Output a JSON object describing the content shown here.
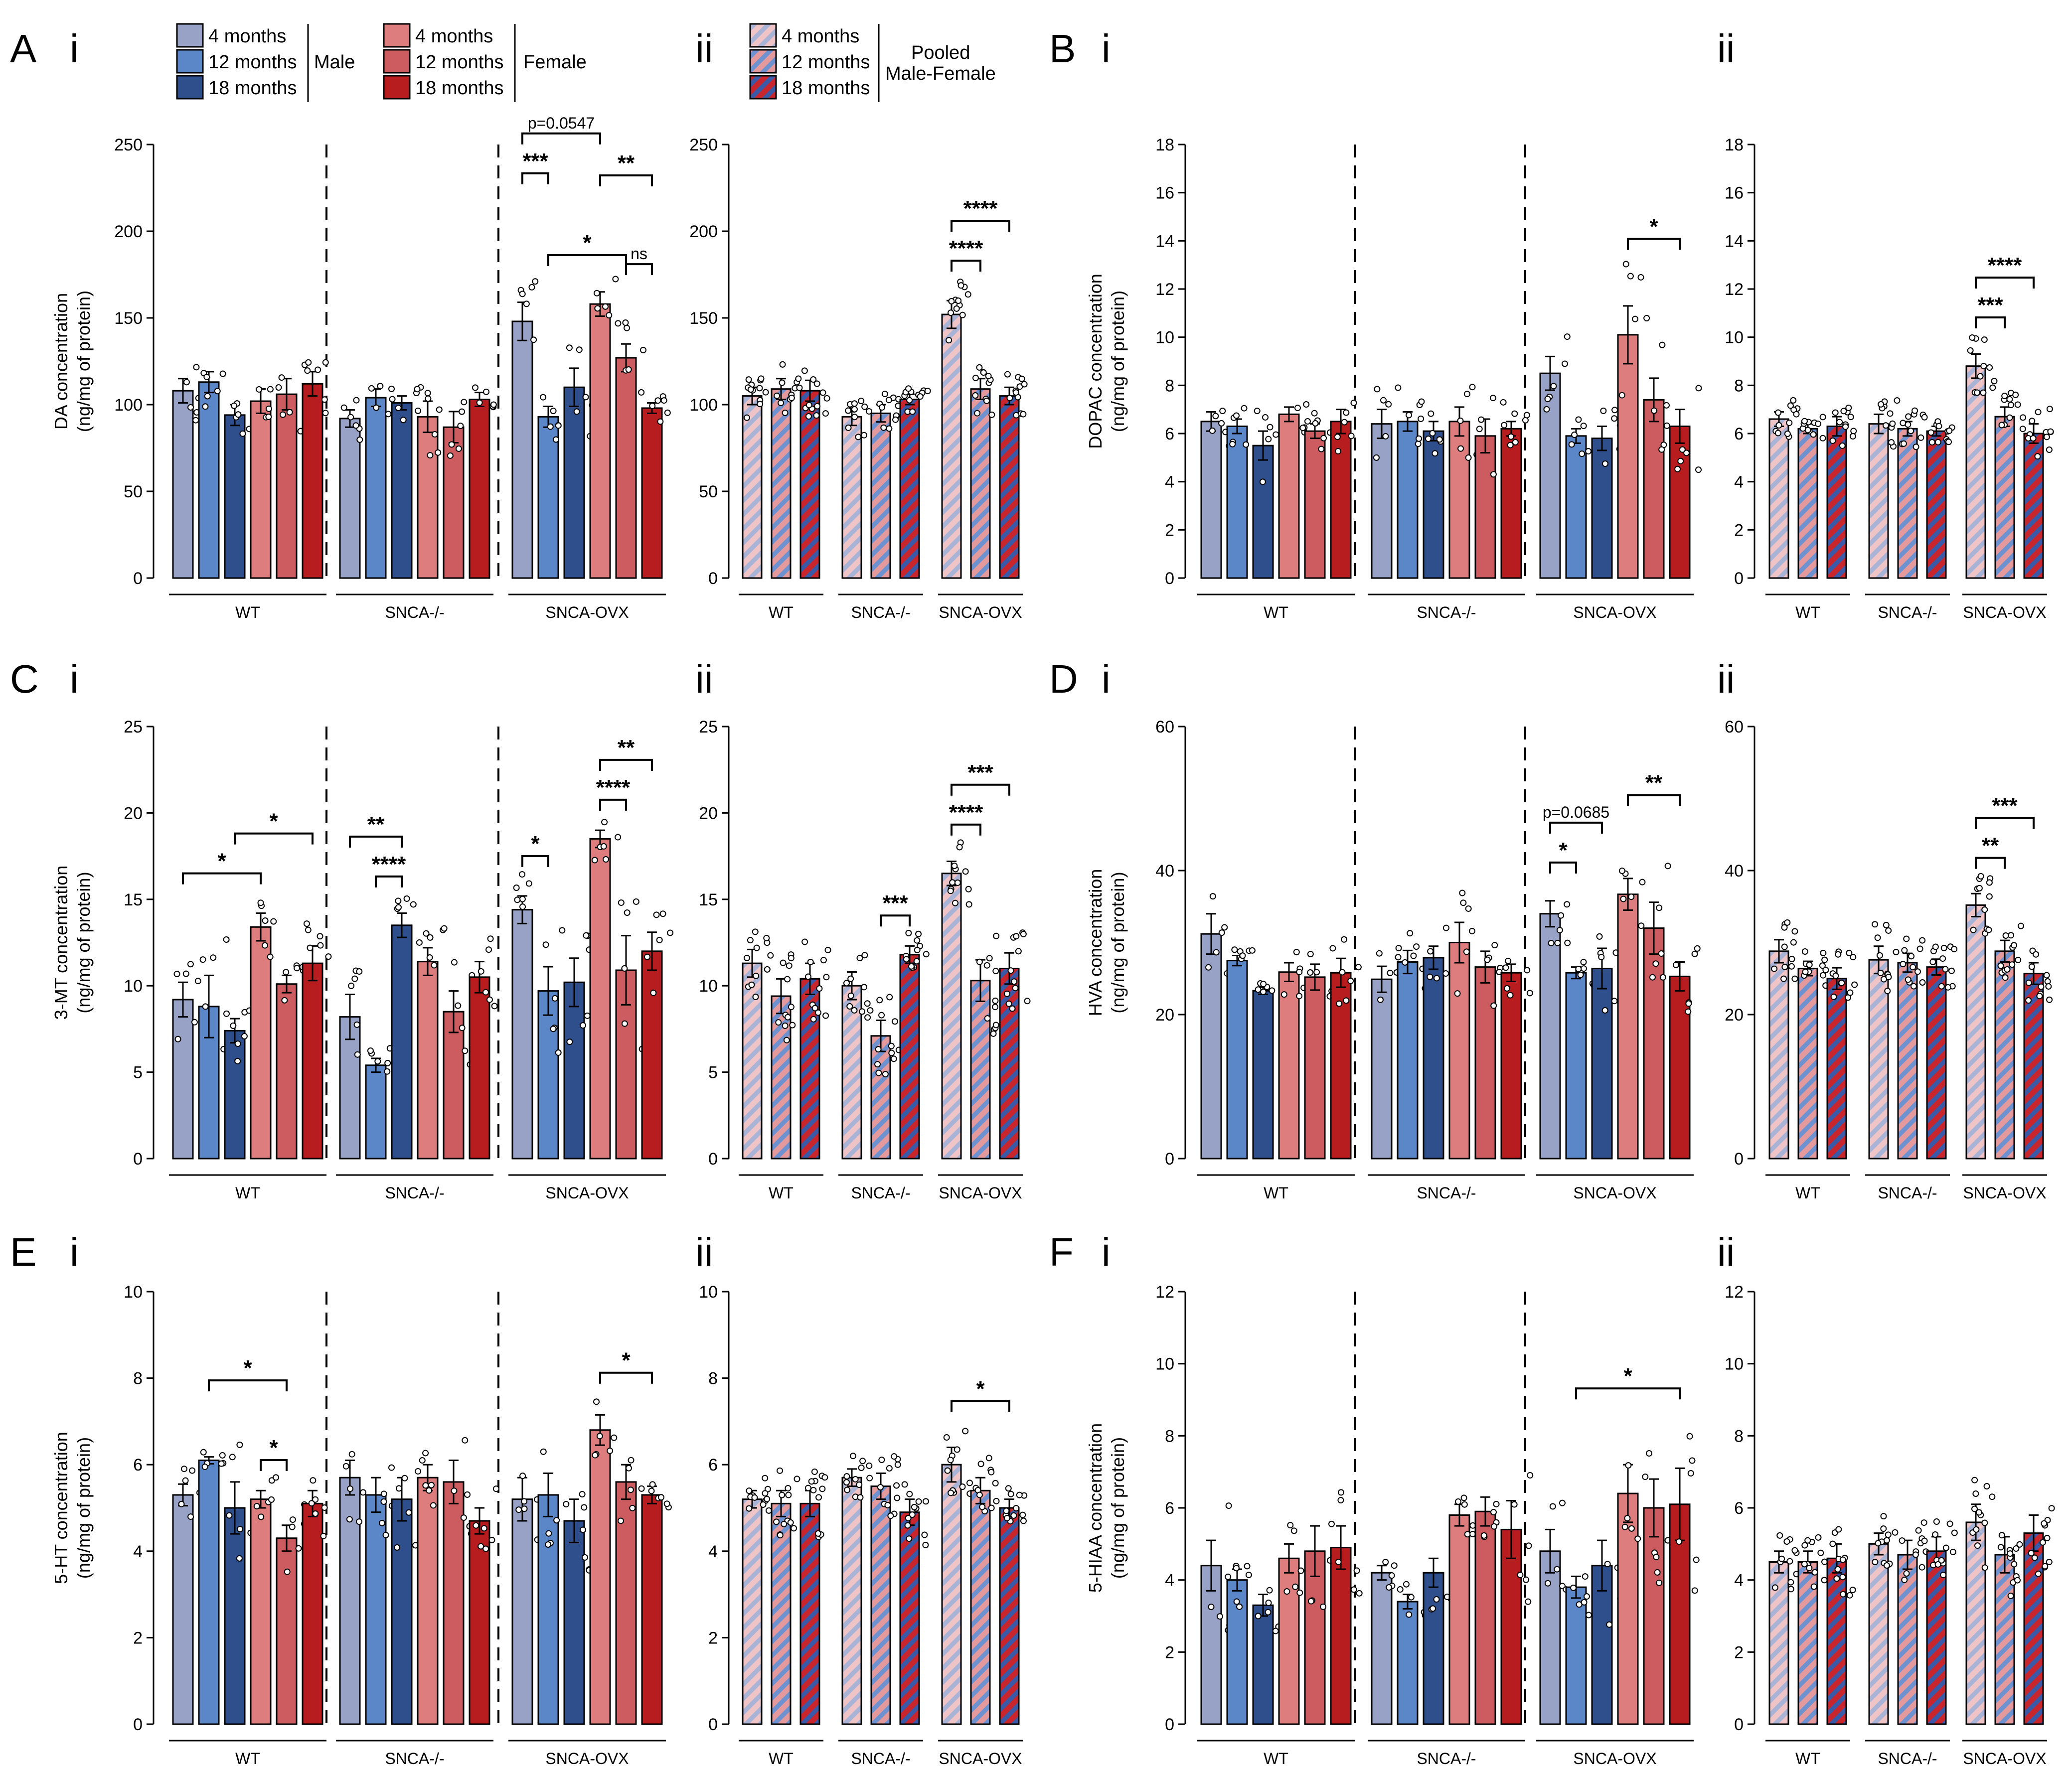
{
  "colors": {
    "m4": "#98a2c7",
    "m12": "#5b86c8",
    "m18": "#2f4e8c",
    "f4": "#de7d7d",
    "f12": "#cd5c61",
    "f18": "#b71c1e",
    "pool_blue": "#5b7fc5",
    "pool_red": "#d0585b",
    "pool_light": "#e9a7ad"
  },
  "legend": {
    "male_items": [
      "4 months",
      "12 months",
      "18 months"
    ],
    "male_label": "Male",
    "female_items": [
      "4 months",
      "12 months",
      "18 months"
    ],
    "female_label": "Female",
    "pooled_items": [
      "4 months",
      "12 months",
      "18 months"
    ],
    "pooled_label_1": "Pooled",
    "pooled_label_2": "Male-Female"
  },
  "panel_letters": [
    "A",
    "B",
    "C",
    "D",
    "E",
    "F"
  ],
  "sub_labels": [
    "i",
    "ii"
  ],
  "genotypes": [
    "WT",
    "SNCA-/-",
    "SNCA-OVX"
  ],
  "chart_data": [
    {
      "type": "bar",
      "panel": "A i",
      "ylabel_1": "DA concentration",
      "ylabel_2": "(ng/mg of protein)",
      "ylim": [
        0,
        250
      ],
      "yticks": [
        0,
        50,
        100,
        150,
        200,
        250
      ],
      "tick_labels": [
        "0",
        "50",
        "100",
        "150",
        "200",
        "250"
      ],
      "series": [
        "Male 4 months",
        "Male 12 months",
        "Male 18 months",
        "Female 4 months",
        "Female 12 months",
        "Female 18 months"
      ],
      "values": [
        [
          108,
          113,
          94,
          102,
          106,
          112
        ],
        [
          92,
          104,
          101,
          93,
          87,
          103
        ],
        [
          148,
          93,
          110,
          158,
          127,
          98
        ]
      ],
      "errors": [
        [
          7,
          6,
          6,
          7,
          9,
          7
        ],
        [
          5,
          5,
          4,
          9,
          9,
          4
        ],
        [
          11,
          6,
          11,
          7,
          8,
          3
        ]
      ],
      "annotations": [
        {
          "text": "p=0.0547",
          "italic_p": true,
          "group": 2,
          "a": 0,
          "b": 3,
          "level": 4
        },
        {
          "text": "***",
          "group": 2,
          "a": 0,
          "b": 1,
          "level": 3
        },
        {
          "text": "**",
          "group": 2,
          "a": 3,
          "b": 5,
          "level": 3
        },
        {
          "text": "ns",
          "group": 2,
          "a": 4,
          "b": 5,
          "level": 2
        },
        {
          "text": "*",
          "group": 2,
          "a": 1,
          "b": 4,
          "level": 1
        }
      ]
    },
    {
      "type": "bar",
      "panel": "A ii",
      "ylim": [
        0,
        250
      ],
      "yticks": [
        0,
        50,
        100,
        150,
        200,
        250
      ],
      "tick_labels": [
        "0",
        "50",
        "100",
        "150",
        "200",
        "250"
      ],
      "series": [
        "Pooled 4 months",
        "Pooled 12 months",
        "Pooled 18 months"
      ],
      "values": [
        [
          105,
          109,
          108
        ],
        [
          93,
          95,
          103
        ],
        [
          152,
          109,
          105
        ]
      ],
      "errors": [
        [
          5,
          6,
          6
        ],
        [
          5,
          5,
          3
        ],
        [
          8,
          6,
          5
        ]
      ],
      "annotations": [
        {
          "text": "****",
          "group": 2,
          "a": 0,
          "b": 2,
          "level": 2
        },
        {
          "text": "****",
          "group": 2,
          "a": 0,
          "b": 1,
          "level": 1
        }
      ]
    },
    {
      "type": "bar",
      "panel": "B i",
      "ylabel_1": "DOPAC concentration",
      "ylabel_2": "(ng/mg of protein)",
      "ylim": [
        0,
        18
      ],
      "yticks": [
        0,
        2,
        4,
        6,
        8,
        10,
        12,
        14,
        16,
        18
      ],
      "tick_labels": [
        "0",
        "2",
        "4",
        "6",
        "8",
        "10",
        "12",
        "14",
        "16",
        "18"
      ],
      "values": [
        [
          6.5,
          6.3,
          5.5,
          6.8,
          6.1,
          6.5
        ],
        [
          6.4,
          6.5,
          6.1,
          6.5,
          5.9,
          6.2
        ],
        [
          8.5,
          5.9,
          5.8,
          10.1,
          7.4,
          6.3
        ]
      ],
      "errors": [
        [
          0.4,
          0.3,
          0.6,
          0.3,
          0.3,
          0.5
        ],
        [
          0.6,
          0.4,
          0.4,
          0.6,
          0.7,
          0.3
        ],
        [
          0.7,
          0.3,
          0.5,
          1.2,
          0.9,
          0.7
        ]
      ],
      "annotations": [
        {
          "text": "*",
          "group": 2,
          "a": 3,
          "b": 5,
          "level": 1
        }
      ]
    },
    {
      "type": "bar",
      "panel": "B ii",
      "ylim": [
        0,
        18
      ],
      "yticks": [
        0,
        2,
        4,
        6,
        8,
        10,
        12,
        14,
        16,
        18
      ],
      "tick_labels": [
        "0",
        "2",
        "4",
        "6",
        "8",
        "10",
        "12",
        "14",
        "16",
        "18"
      ],
      "values": [
        [
          6.6,
          6.2,
          6.3
        ],
        [
          6.4,
          6.2,
          6.1
        ],
        [
          8.8,
          6.7,
          6.0
        ]
      ],
      "errors": [
        [
          0.3,
          0.2,
          0.4
        ],
        [
          0.4,
          0.3,
          0.2
        ],
        [
          0.5,
          0.4,
          0.4
        ]
      ],
      "annotations": [
        {
          "text": "****",
          "group": 2,
          "a": 0,
          "b": 2,
          "level": 2
        },
        {
          "text": "***",
          "group": 2,
          "a": 0,
          "b": 1,
          "level": 1
        }
      ]
    },
    {
      "type": "bar",
      "panel": "C i",
      "ylabel_1": "3-MT concentration",
      "ylabel_2": "(ng/mg of protein)",
      "ylim": [
        0,
        25
      ],
      "yticks": [
        0,
        5,
        10,
        15,
        20,
        25
      ],
      "tick_labels": [
        "0",
        "5",
        "10",
        "15",
        "20",
        "25"
      ],
      "values": [
        [
          9.2,
          8.8,
          7.4,
          13.4,
          10.1,
          11.3
        ],
        [
          8.2,
          5.4,
          13.5,
          11.4,
          8.5,
          10.5
        ],
        [
          14.4,
          9.7,
          10.2,
          18.5,
          10.9,
          12.0
        ]
      ],
      "errors": [
        [
          1.0,
          1.8,
          0.7,
          0.8,
          0.5,
          1.0
        ],
        [
          1.3,
          0.4,
          0.7,
          0.8,
          1.2,
          0.9
        ],
        [
          0.8,
          1.4,
          1.4,
          0.5,
          2.0,
          1.1
        ]
      ],
      "annotations": [
        {
          "text": "*",
          "group": 0,
          "a": 0,
          "b": 3,
          "level": 1
        },
        {
          "text": "*",
          "group": 0,
          "a": 2,
          "b": 5,
          "level": 2
        },
        {
          "text": "**",
          "group": 1,
          "a": 0,
          "b": 2,
          "level": 2
        },
        {
          "text": "****",
          "group": 1,
          "a": 1,
          "b": 2,
          "level": 1
        },
        {
          "text": "*",
          "group": 2,
          "a": 0,
          "b": 1,
          "level": 1
        },
        {
          "text": "**",
          "group": 2,
          "a": 3,
          "b": 5,
          "level": 2
        },
        {
          "text": "****",
          "group": 2,
          "a": 3,
          "b": 4,
          "level": 1
        }
      ]
    },
    {
      "type": "bar",
      "panel": "C ii",
      "ylim": [
        0,
        25
      ],
      "yticks": [
        0,
        5,
        10,
        15,
        20,
        25
      ],
      "tick_labels": [
        "0",
        "5",
        "10",
        "15",
        "20",
        "25"
      ],
      "values": [
        [
          11.3,
          9.4,
          10.4
        ],
        [
          10.0,
          7.1,
          11.8
        ],
        [
          16.5,
          10.3,
          11.0
        ]
      ],
      "errors": [
        [
          0.8,
          1.0,
          0.9
        ],
        [
          0.8,
          0.9,
          0.5
        ],
        [
          0.7,
          1.2,
          0.9
        ]
      ],
      "annotations": [
        {
          "text": "***",
          "group": 1,
          "a": 1,
          "b": 2,
          "level": 1
        },
        {
          "text": "***",
          "group": 2,
          "a": 0,
          "b": 2,
          "level": 2
        },
        {
          "text": "****",
          "group": 2,
          "a": 0,
          "b": 1,
          "level": 1
        }
      ]
    },
    {
      "type": "bar",
      "panel": "D i",
      "ylabel_1": "HVA concentration",
      "ylabel_2": "(ng/mg of protein)",
      "ylim": [
        0,
        60
      ],
      "yticks": [
        0,
        20,
        40,
        60
      ],
      "tick_labels": [
        "0",
        "20",
        "40",
        "60"
      ],
      "values": [
        [
          31.2,
          27.5,
          23.3,
          25.9,
          25.2,
          25.8
        ],
        [
          24.9,
          27.3,
          27.9,
          30.0,
          26.6,
          25.8
        ],
        [
          34.0,
          25.8,
          26.4,
          36.7,
          32.0,
          25.3
        ]
      ],
      "errors": [
        [
          2.8,
          0.7,
          0.5,
          1.3,
          1.8,
          2.0
        ],
        [
          1.8,
          1.6,
          1.6,
          2.8,
          2.2,
          1.2
        ],
        [
          1.8,
          0.8,
          2.8,
          2.2,
          3.6,
          2.0
        ]
      ],
      "annotations": [
        {
          "text": "p=0.0685",
          "italic_p": true,
          "group": 2,
          "a": 0,
          "b": 2,
          "level": 2
        },
        {
          "text": "*",
          "group": 2,
          "a": 0,
          "b": 1,
          "level": 1
        },
        {
          "text": "**",
          "group": 2,
          "a": 3,
          "b": 5,
          "level": 2
        }
      ]
    },
    {
      "type": "bar",
      "panel": "D ii",
      "ylim": [
        0,
        60
      ],
      "yticks": [
        0,
        20,
        40,
        60
      ],
      "tick_labels": [
        "0",
        "20",
        "40",
        "60"
      ],
      "values": [
        [
          28.8,
          26.4,
          25.0
        ],
        [
          27.6,
          27.2,
          26.6
        ],
        [
          35.2,
          28.8,
          25.7
        ]
      ],
      "errors": [
        [
          1.6,
          1.0,
          1.5
        ],
        [
          1.9,
          1.3,
          1.1
        ],
        [
          1.6,
          1.5,
          1.5
        ]
      ],
      "annotations": [
        {
          "text": "***",
          "group": 2,
          "a": 0,
          "b": 2,
          "level": 2
        },
        {
          "text": "**",
          "group": 2,
          "a": 0,
          "b": 1,
          "level": 1
        }
      ]
    },
    {
      "type": "bar",
      "panel": "E i",
      "ylabel_1": "5-HT concentration",
      "ylabel_2": "(ng/mg of protein)",
      "ylim": [
        0,
        10
      ],
      "yticks": [
        0,
        2,
        4,
        6,
        8,
        10
      ],
      "tick_labels": [
        "0",
        "2",
        "4",
        "6",
        "8",
        "10"
      ],
      "values": [
        [
          5.3,
          6.1,
          5.0,
          5.2,
          4.3,
          5.1
        ],
        [
          5.7,
          5.3,
          5.2,
          5.7,
          5.6,
          4.7
        ],
        [
          5.2,
          5.3,
          4.7,
          6.8,
          5.6,
          5.3
        ]
      ],
      "errors": [
        [
          0.25,
          0.08,
          0.6,
          0.2,
          0.3,
          0.3
        ],
        [
          0.4,
          0.4,
          0.5,
          0.3,
          0.5,
          0.3
        ],
        [
          0.5,
          0.5,
          0.5,
          0.35,
          0.4,
          0.2
        ]
      ],
      "annotations": [
        {
          "text": "*",
          "group": 0,
          "a": 1,
          "b": 4,
          "level": 2
        },
        {
          "text": "*",
          "group": 0,
          "a": 3,
          "b": 4,
          "level": 1
        },
        {
          "text": "*",
          "group": 2,
          "a": 3,
          "b": 5,
          "level": 1
        }
      ]
    },
    {
      "type": "bar",
      "panel": "E ii",
      "ylim": [
        0,
        10
      ],
      "yticks": [
        0,
        2,
        4,
        6,
        8,
        10
      ],
      "tick_labels": [
        "0",
        "2",
        "4",
        "6",
        "8",
        "10"
      ],
      "values": [
        [
          5.2,
          5.1,
          5.1
        ],
        [
          5.7,
          5.5,
          4.9
        ],
        [
          6.0,
          5.4,
          5.0
        ]
      ],
      "errors": [
        [
          0.2,
          0.3,
          0.3
        ],
        [
          0.2,
          0.3,
          0.3
        ],
        [
          0.4,
          0.3,
          0.2
        ]
      ],
      "annotations": [
        {
          "text": "*",
          "group": 2,
          "a": 0,
          "b": 2,
          "level": 1
        }
      ]
    },
    {
      "type": "bar",
      "panel": "F i",
      "ylabel_1": "5-HIAA concentration",
      "ylabel_2": "(ng/mg of protein)",
      "ylim": [
        0,
        12
      ],
      "yticks": [
        0,
        2,
        4,
        6,
        8,
        10,
        12
      ],
      "tick_labels": [
        "0",
        "2",
        "4",
        "6",
        "8",
        "10",
        "12"
      ],
      "values": [
        [
          4.4,
          4.0,
          3.3,
          4.6,
          4.8,
          4.9
        ],
        [
          4.2,
          3.4,
          4.2,
          5.8,
          5.9,
          5.4
        ],
        [
          4.8,
          3.8,
          4.4,
          6.4,
          6.0,
          6.1
        ]
      ],
      "errors": [
        [
          0.7,
          0.3,
          0.3,
          0.4,
          0.7,
          0.6
        ],
        [
          0.2,
          0.2,
          0.4,
          0.3,
          0.4,
          0.8
        ],
        [
          0.6,
          0.3,
          0.7,
          0.8,
          0.8,
          1.0
        ]
      ],
      "annotations": [
        {
          "text": "*",
          "group": 2,
          "a": 1,
          "b": 5,
          "level": 1
        }
      ]
    },
    {
      "type": "bar",
      "panel": "F ii",
      "ylim": [
        0,
        12
      ],
      "yticks": [
        0,
        2,
        4,
        6,
        8,
        10,
        12
      ],
      "tick_labels": [
        "0",
        "2",
        "4",
        "6",
        "8",
        "10",
        "12"
      ],
      "values": [
        [
          4.5,
          4.5,
          4.6
        ],
        [
          5.0,
          4.7,
          4.8
        ],
        [
          5.6,
          4.7,
          5.3
        ]
      ],
      "errors": [
        [
          0.3,
          0.3,
          0.4
        ],
        [
          0.3,
          0.4,
          0.4
        ],
        [
          0.5,
          0.5,
          0.5
        ]
      ],
      "annotations": []
    }
  ]
}
